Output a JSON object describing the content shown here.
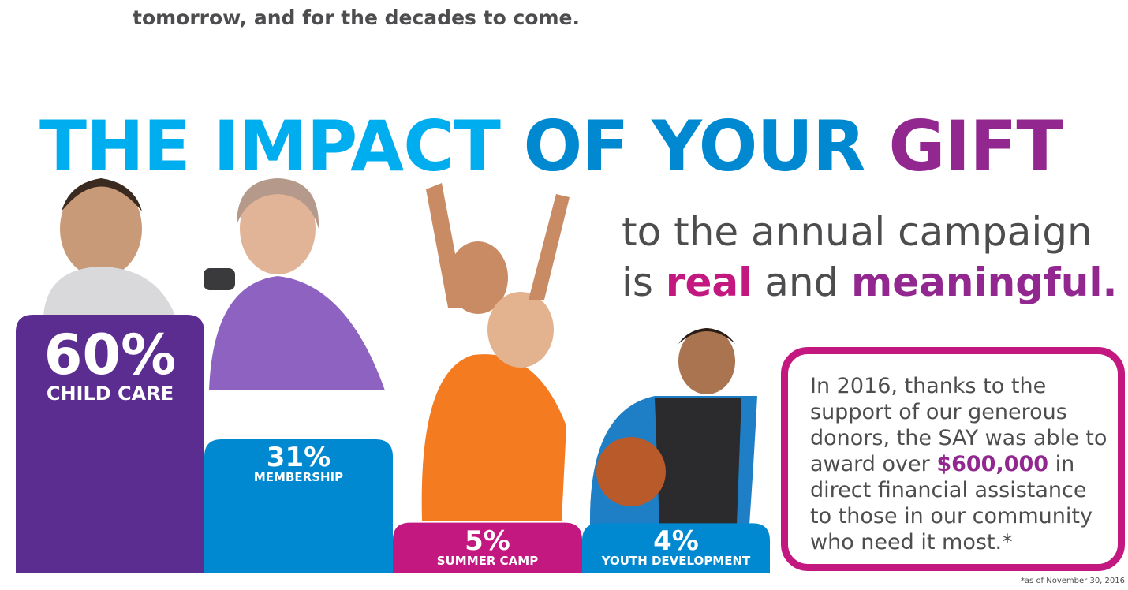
{
  "intro": {
    "line": "tomorrow, and for the decades to come."
  },
  "headline": {
    "part1": "THE IMPACT ",
    "part2": "OF YOUR ",
    "part3": "GIFT"
  },
  "subhead": {
    "line1": "to the annual campaign",
    "line2_prefix": "is ",
    "line2_real": "real",
    "line2_mid": " and ",
    "line2_meaningful": "meaningful."
  },
  "chart_data": {
    "type": "bar",
    "title": "",
    "categories": [
      "CHILD CARE",
      "MEMBERSHIP",
      "SUMMER CAMP",
      "YOUTH DEVELOPMENT"
    ],
    "values": [
      60,
      31,
      5,
      4
    ],
    "labels": [
      "60%",
      "31%",
      "5%",
      "4%"
    ],
    "colors": [
      "#5c2d91",
      "#0089d0",
      "#c2187f",
      "#0089d0"
    ],
    "xlabel": "",
    "ylabel": "",
    "unit": "%"
  },
  "callout": {
    "text_before": "In 2016, thanks to the support of our generous donors, the SAY was able to award over ",
    "amount": "$600,000",
    "text_after": " in direct financial assistance to those in our community who need it most.*"
  },
  "footnote": "*as of November 30, 2016",
  "photos": [
    {
      "icon": "toddler-photo-icon"
    },
    {
      "icon": "senior-woman-dumbbell-photo-icon"
    },
    {
      "icon": "children-summer-camp-photo-icon"
    },
    {
      "icon": "boy-basketball-photo-icon"
    }
  ]
}
